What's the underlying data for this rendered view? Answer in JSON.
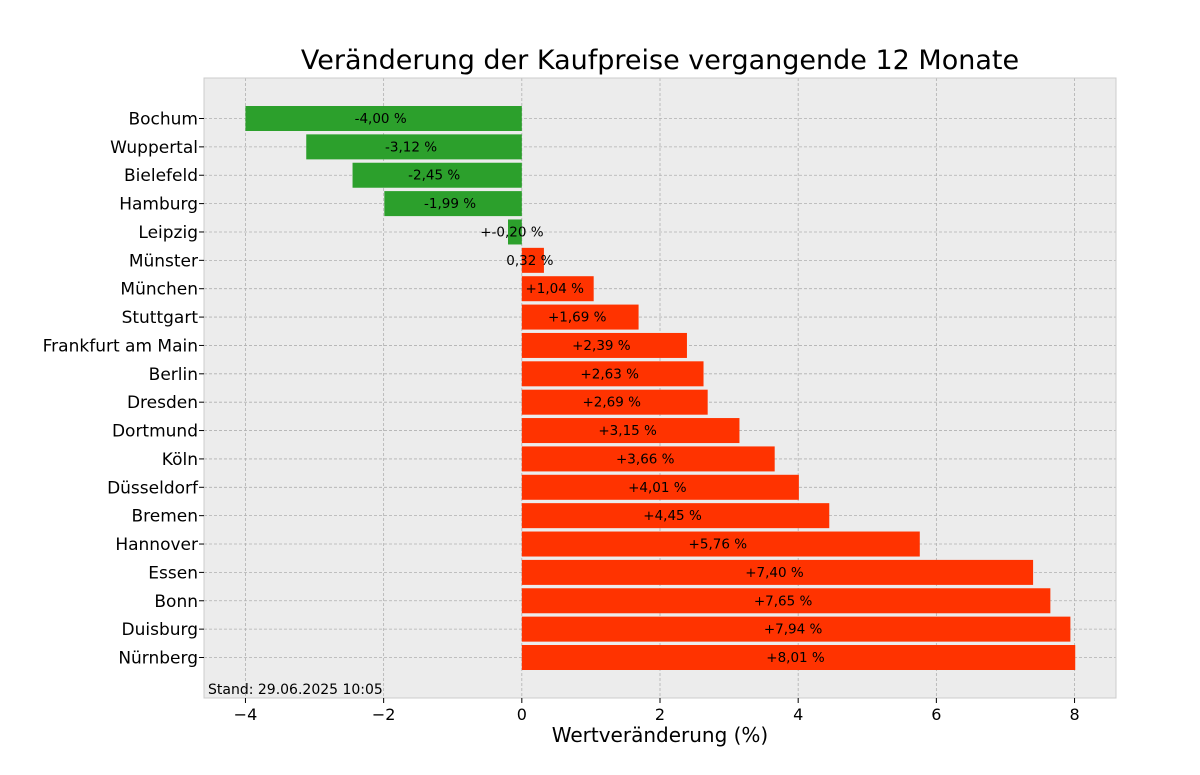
{
  "chart_data": {
    "type": "bar",
    "orientation": "horizontal",
    "title": "Veränderung der Kaufpreise vergangende 12 Monate",
    "xlabel": "Wertveränderung (%)",
    "ylabel": "",
    "xlim": [
      -4.6,
      8.6
    ],
    "x_ticks": [
      -4,
      -2,
      0,
      2,
      4,
      6,
      8
    ],
    "x_tick_labels": [
      "−4",
      "−2",
      "0",
      "2",
      "4",
      "6",
      "8"
    ],
    "grid": true,
    "categories": [
      "Bochum",
      "Wuppertal",
      "Bielefeld",
      "Hamburg",
      "Leipzig",
      "Münster",
      "München",
      "Stuttgart",
      "Frankfurt am Main",
      "Berlin",
      "Dresden",
      "Dortmund",
      "Köln",
      "Düsseldorf",
      "Bremen",
      "Hannover",
      "Essen",
      "Bonn",
      "Duisburg",
      "Nürnberg"
    ],
    "values": [
      -4.0,
      -3.12,
      -2.45,
      -1.99,
      -0.2,
      0.32,
      1.04,
      1.69,
      2.39,
      2.63,
      2.69,
      3.15,
      3.66,
      4.01,
      4.45,
      5.76,
      7.4,
      7.65,
      7.94,
      8.01
    ],
    "data_labels": [
      "-4,00 %",
      "-3,12 %",
      "-2,45 %",
      "-1,99 %",
      "+-0,20 %",
      "0,32 %",
      "+1,04 %",
      "+1,69 %",
      "+2,39 %",
      "+2,63 %",
      "+2,69 %",
      "+3,15 %",
      "+3,66 %",
      "+4,01 %",
      "+4,45 %",
      "+5,76 %",
      "+7,40 %",
      "+7,65 %",
      "+7,94 %",
      "+8,01 %"
    ],
    "colors": {
      "negative": "#2ca02c",
      "positive": "#ff3300",
      "background": "#ececec",
      "grid": "#b0b0b0"
    },
    "annotation": "Stand: 29.06.2025 10:05"
  }
}
